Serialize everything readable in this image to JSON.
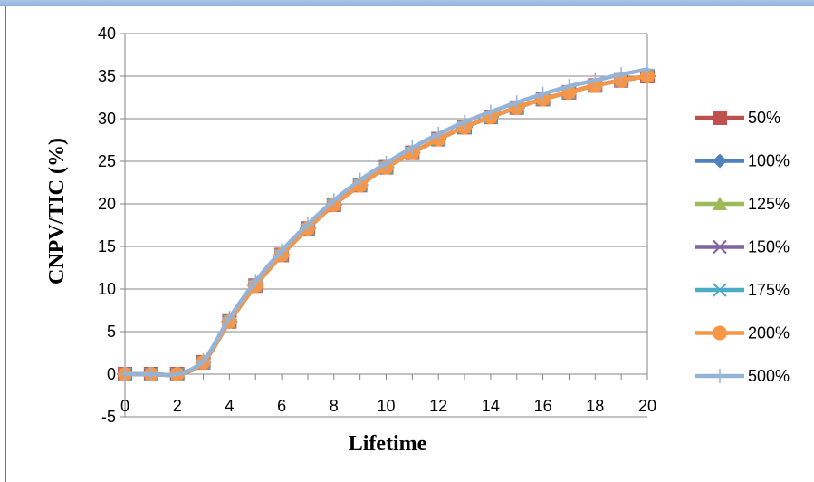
{
  "chart_data": {
    "type": "line",
    "title": "",
    "xlabel": "Lifetime",
    "ylabel": "CNPV/TIC (%)",
    "xlim": [
      0,
      20
    ],
    "ylim": [
      -5,
      40
    ],
    "x_ticks": [
      "0",
      "2",
      "4",
      "6",
      "8",
      "10",
      "12",
      "14",
      "16",
      "18",
      "20"
    ],
    "y_ticks": [
      "40",
      "35",
      "30",
      "25",
      "20",
      "15",
      "10",
      "5",
      "0",
      "-5"
    ],
    "grid": "horizontal",
    "legend_position": "right",
    "x": [
      0,
      1,
      2,
      3,
      4,
      5,
      6,
      7,
      8,
      9,
      10,
      11,
      12,
      13,
      14,
      15,
      16,
      17,
      18,
      19,
      20
    ],
    "series": [
      {
        "name": "50%",
        "color": "#c0504d",
        "marker": "square",
        "values": [
          0,
          0,
          0,
          1.4,
          6.2,
          10.4,
          14.0,
          17.1,
          19.9,
          22.2,
          24.3,
          26.0,
          27.6,
          29.0,
          30.2,
          31.3,
          32.3,
          33.1,
          33.9,
          34.5,
          35.0
        ]
      },
      {
        "name": "100%",
        "color": "#4f81bd",
        "marker": "diamond",
        "values": [
          0,
          0,
          0,
          1.4,
          6.2,
          10.4,
          14.0,
          17.1,
          19.9,
          22.2,
          24.3,
          26.0,
          27.6,
          29.0,
          30.2,
          31.3,
          32.3,
          33.1,
          33.9,
          34.5,
          35.0
        ]
      },
      {
        "name": "125%",
        "color": "#9bbb59",
        "marker": "triangle",
        "values": [
          0,
          0,
          0,
          1.4,
          6.2,
          10.4,
          14.0,
          17.1,
          19.9,
          22.2,
          24.3,
          26.0,
          27.6,
          29.0,
          30.2,
          31.3,
          32.3,
          33.1,
          33.9,
          34.5,
          35.0
        ]
      },
      {
        "name": "150%",
        "color": "#8064a2",
        "marker": "x",
        "values": [
          0,
          0,
          0,
          1.4,
          6.2,
          10.4,
          14.0,
          17.1,
          19.9,
          22.2,
          24.3,
          26.0,
          27.6,
          29.0,
          30.2,
          31.3,
          32.3,
          33.1,
          33.9,
          34.5,
          35.0
        ]
      },
      {
        "name": "175%",
        "color": "#4bacc6",
        "marker": "asterisk",
        "values": [
          0,
          0,
          0,
          1.4,
          6.2,
          10.4,
          14.0,
          17.1,
          19.9,
          22.2,
          24.3,
          26.0,
          27.6,
          29.0,
          30.2,
          31.3,
          32.3,
          33.1,
          33.9,
          34.5,
          35.0
        ]
      },
      {
        "name": "200%",
        "color": "#f79646",
        "marker": "circle",
        "values": [
          0,
          0,
          0,
          1.4,
          6.2,
          10.4,
          14.0,
          17.1,
          19.9,
          22.2,
          24.3,
          26.0,
          27.6,
          29.0,
          30.2,
          31.3,
          32.3,
          33.1,
          33.9,
          34.5,
          35.0
        ]
      },
      {
        "name": "500%",
        "color": "#95b3d7",
        "marker": "plus",
        "values": [
          0,
          0,
          0,
          1.6,
          6.6,
          10.9,
          14.5,
          17.6,
          20.4,
          22.8,
          24.8,
          26.6,
          28.2,
          29.6,
          30.8,
          31.9,
          32.9,
          33.8,
          34.5,
          35.2,
          35.8
        ]
      }
    ]
  }
}
